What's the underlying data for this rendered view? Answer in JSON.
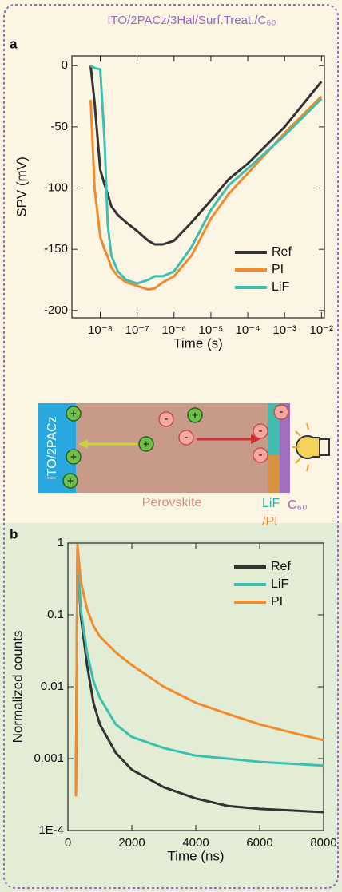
{
  "title": "ITO/2PACz/3Hal/Surf.Treat./C₆₀",
  "chart_data": [
    {
      "type": "line",
      "panel_label": "a",
      "xlabel": "Time (s)",
      "ylabel": "SPV (mV)",
      "xlog": true,
      "ylog": false,
      "legend": "lower right",
      "xlim": [
        1.7e-09,
        0.012
      ],
      "ylim": [
        -206,
        8
      ],
      "xticks": [
        {
          "value": 1e-08,
          "label": "10⁻⁸"
        },
        {
          "value": 1e-07,
          "label": "10⁻⁷"
        },
        {
          "value": 1e-06,
          "label": "10⁻⁶"
        },
        {
          "value": 1e-05,
          "label": "10⁻⁵"
        },
        {
          "value": 0.0001,
          "label": "10⁻⁴"
        },
        {
          "value": 0.001,
          "label": "10⁻³"
        },
        {
          "value": 0.01,
          "label": "10⁻²"
        }
      ],
      "yticks": [
        0,
        -50,
        -100,
        -150,
        -200
      ],
      "x": [
        5.5e-09,
        7e-09,
        1e-08,
        1.3e-08,
        1.6e-08,
        2e-08,
        3e-08,
        5e-08,
        1e-07,
        2e-07,
        3e-07,
        5e-07,
        1e-06,
        3e-06,
        1e-05,
        3e-05,
        0.0001,
        0.001,
        0.01
      ],
      "series": [
        {
          "name": "Ref",
          "color": "#333333",
          "values": [
            0,
            -30,
            -85,
            -97,
            -105,
            -115,
            -122,
            -128,
            -135,
            -143,
            -146,
            -146,
            -143,
            -128,
            -110,
            -93,
            -80,
            -50,
            -13
          ]
        },
        {
          "name": "PI",
          "color": "#f28a2e",
          "values": [
            -28,
            -100,
            -140,
            -150,
            -156,
            -165,
            -172,
            -177,
            -180,
            -183,
            -182,
            -177,
            -172,
            -155,
            -125,
            -105,
            -88,
            -55,
            -25
          ]
        },
        {
          "name": "LiF",
          "color": "#3dbfb0",
          "values": [
            0,
            -2,
            -3,
            -60,
            -130,
            -155,
            -168,
            -175,
            -178,
            -175,
            -172,
            -172,
            -168,
            -148,
            -118,
            -98,
            -84,
            -57,
            -27
          ]
        }
      ]
    },
    {
      "type": "line",
      "panel_label": "b",
      "xlabel": "Time (ns)",
      "ylabel": "Normalized counts",
      "xlog": false,
      "ylog": true,
      "legend": "upper right",
      "xlim": [
        0,
        8000
      ],
      "ylim": [
        0.0001,
        1
      ],
      "xticks": [
        0,
        2000,
        4000,
        6000,
        8000
      ],
      "yticks": [
        1,
        0.1,
        0.01,
        0.001,
        {
          "value": 0.0001,
          "label": "1E-4"
        }
      ],
      "x": [
        250,
        300,
        400,
        600,
        800,
        1000,
        1500,
        2000,
        3000,
        4000,
        5000,
        6000,
        7000,
        8000
      ],
      "series": [
        {
          "name": "Ref",
          "color": "#333333",
          "values": [
            0.0003,
            0.9,
            0.1,
            0.02,
            0.006,
            0.003,
            0.0012,
            0.0007,
            0.0004,
            0.00028,
            0.00022,
            0.0002,
            0.00019,
            0.00018
          ]
        },
        {
          "name": "LiF",
          "color": "#3dbfb0",
          "values": [
            0.0003,
            0.9,
            0.12,
            0.03,
            0.012,
            0.007,
            0.003,
            0.002,
            0.0014,
            0.0011,
            0.001,
            0.0009,
            0.00085,
            0.0008
          ]
        },
        {
          "name": "PI",
          "color": "#f28a2e",
          "values": [
            0.0003,
            0.95,
            0.3,
            0.12,
            0.07,
            0.05,
            0.03,
            0.02,
            0.01,
            0.006,
            0.0042,
            0.003,
            0.0023,
            0.0018
          ]
        }
      ]
    }
  ],
  "diagram": {
    "htl": "ITO/2PACz",
    "absorber": "Perovskite",
    "lif": "LiF",
    "pi": "/PI",
    "etl": "C₆₀",
    "plus": "+",
    "minus": "-"
  }
}
